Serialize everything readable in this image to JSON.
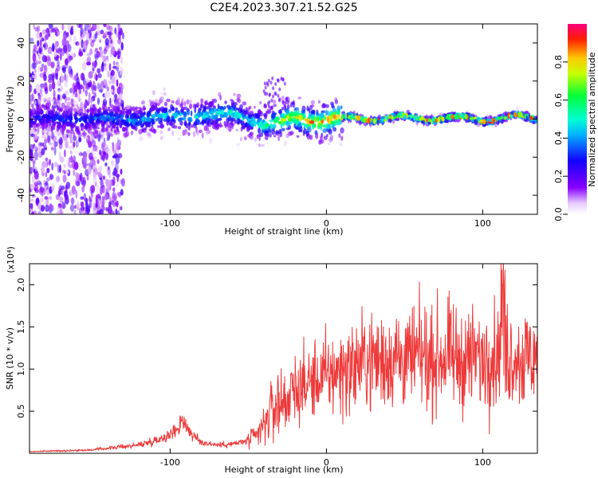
{
  "title": "C2E4.2023.307.21.52.G25",
  "chart_data": [
    {
      "type": "heatmap",
      "xlabel": "Height of straight line (km)",
      "ylabel": "Frequency (Hz)",
      "xlim": [
        -190,
        135
      ],
      "ylim": [
        -50,
        50
      ],
      "x_ticks": [
        -100,
        0,
        100
      ],
      "x_tick_labels": [
        "-100",
        "0",
        "100"
      ],
      "y_ticks": [
        -40,
        -20,
        0,
        20,
        40
      ],
      "y_tick_labels": [
        "-40",
        "-20",
        "0",
        "20",
        "40"
      ],
      "colorbar": {
        "label": "Normalized spectral amplitude",
        "range": [
          0,
          1
        ],
        "ticks": [
          0.0,
          0.2,
          0.4,
          0.6,
          0.8
        ],
        "tick_labels": [
          "0.0",
          "0.2",
          "0.4",
          "0.6",
          "0.8"
        ]
      },
      "grid": false
    },
    {
      "type": "line",
      "xlabel": "Height of straight line (km)",
      "ylabel": "SNR (10 * v/v)",
      "y_multiplier_label": "(x10⁴)",
      "xlim": [
        -190,
        135
      ],
      "ylim": [
        0,
        2.25
      ],
      "x_ticks": [
        -100,
        0,
        100
      ],
      "x_tick_labels": [
        "-100",
        "0",
        "100"
      ],
      "y_ticks": [
        0.5,
        1.0,
        1.5,
        2.0
      ],
      "y_tick_labels": [
        "0.5",
        "1.0",
        "1.5",
        "2.0"
      ],
      "line_color": "#ee3a3a",
      "grid": false,
      "series": [
        {
          "x": [
            -190,
            -170,
            -150,
            -140,
            -130,
            -120,
            -110,
            -100,
            -95,
            -92,
            -90,
            -85,
            -80,
            -70,
            -60,
            -50,
            -45,
            -40,
            -38,
            -35,
            -32,
            -30,
            -28,
            -25,
            -20,
            -15,
            -10,
            -5,
            0,
            5,
            10,
            15,
            20,
            25,
            30,
            35,
            40,
            45,
            50,
            55,
            60,
            65,
            70,
            75,
            80,
            85,
            90,
            95,
            100,
            105,
            110,
            113,
            115,
            120,
            125,
            130,
            135
          ],
          "y": [
            0.02,
            0.03,
            0.04,
            0.06,
            0.08,
            0.1,
            0.15,
            0.22,
            0.3,
            0.42,
            0.33,
            0.2,
            0.13,
            0.1,
            0.11,
            0.15,
            0.2,
            0.32,
            0.42,
            0.52,
            0.55,
            0.62,
            0.62,
            0.66,
            0.75,
            0.8,
            0.85,
            0.88,
            0.92,
            0.95,
            1.0,
            1.0,
            1.05,
            1.1,
            1.12,
            1.1,
            1.12,
            1.15,
            1.1,
            1.12,
            1.15,
            1.1,
            1.12,
            1.15,
            1.15,
            1.1,
            1.12,
            1.15,
            1.1,
            1.2,
            1.15,
            1.9,
            1.15,
            1.2,
            1.1,
            1.15,
            1.15
          ]
        }
      ]
    }
  ]
}
